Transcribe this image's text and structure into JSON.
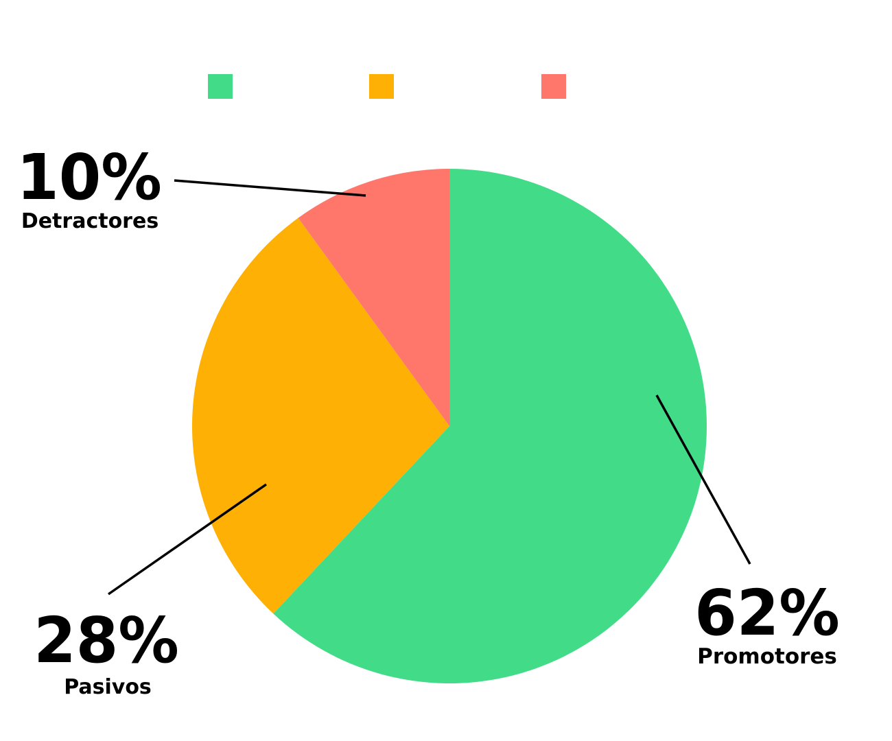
{
  "chart_data": {
    "type": "pie",
    "slices": [
      {
        "label": "Promotores",
        "value": 62,
        "display": "62%",
        "color": "#42dc88"
      },
      {
        "label": "Pasivos",
        "value": 28,
        "display": "28%",
        "color": "#feb004"
      },
      {
        "label": "Detractores",
        "value": 10,
        "display": "10%",
        "color": "#ff766b"
      }
    ],
    "start_angle_deg": 0,
    "direction": "clockwise",
    "legend": {
      "placement": "top",
      "show_text": false
    }
  }
}
